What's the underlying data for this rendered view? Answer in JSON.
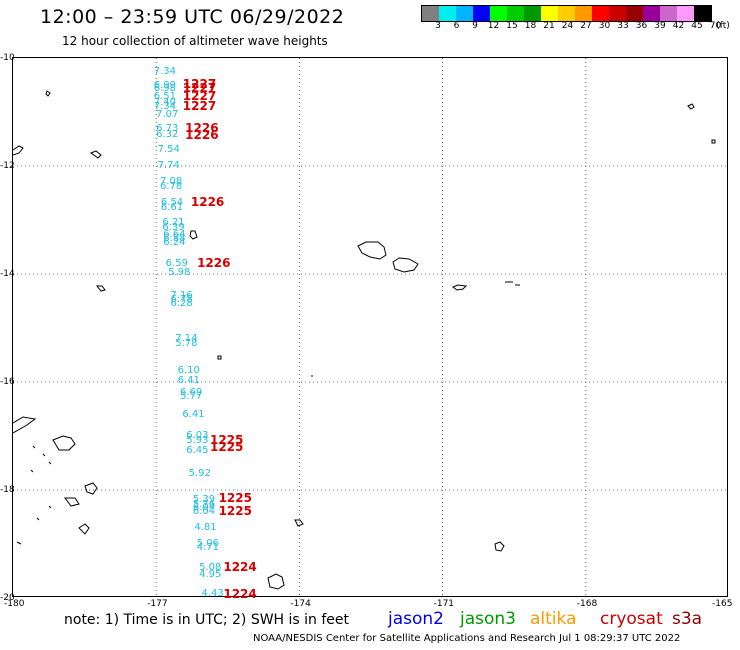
{
  "header": {
    "title": "12:00 – 23:59 UTC 06/29/2022",
    "subtitle": "12 hour collection of altimeter wave heights"
  },
  "colorbar": {
    "colors": [
      "#808080",
      "#00eeee",
      "#00b4ff",
      "#0000ff",
      "#00ff00",
      "#00cc00",
      "#009900",
      "#ffff00",
      "#ffcc00",
      "#ff9900",
      "#ff0000",
      "#cc0000",
      "#990000",
      "#990099",
      "#cc66cc",
      "#ff99ff",
      "#000000"
    ],
    "ticks": [
      "3",
      "6",
      "9",
      "12",
      "15",
      "18",
      "21",
      "24",
      "27",
      "30",
      "33",
      "36",
      "39",
      "42",
      "45",
      "70",
      "(ft)"
    ]
  },
  "axes": {
    "lat_labels": [
      "-10",
      "-12",
      "-14",
      "-16",
      "-18",
      "-20"
    ],
    "lon_labels": [
      "-180",
      "-177",
      "-174",
      "-171",
      "-168",
      "-165"
    ]
  },
  "observations": {
    "wave_heights": [
      {
        "lon": -176.8,
        "lat": -10.25,
        "v": "7.34"
      },
      {
        "lon": -176.8,
        "lat": -10.52,
        "v": "6.99"
      },
      {
        "lon": -176.8,
        "lat": -10.58,
        "v": "6.98"
      },
      {
        "lon": -176.8,
        "lat": -10.72,
        "v": "6.51"
      },
      {
        "lon": -176.8,
        "lat": -10.84,
        "v": "7.40"
      },
      {
        "lon": -176.8,
        "lat": -10.9,
        "v": "7.34"
      },
      {
        "lon": -176.75,
        "lat": -11.05,
        "v": "7.07"
      },
      {
        "lon": -176.75,
        "lat": -11.32,
        "v": "6.73"
      },
      {
        "lon": -176.75,
        "lat": -11.42,
        "v": "6.32"
      },
      {
        "lon": -176.72,
        "lat": -11.7,
        "v": "7.54"
      },
      {
        "lon": -176.72,
        "lat": -12.0,
        "v": "7.74"
      },
      {
        "lon": -176.67,
        "lat": -12.3,
        "v": "7.08"
      },
      {
        "lon": -176.67,
        "lat": -12.38,
        "v": "6.78"
      },
      {
        "lon": -176.65,
        "lat": -12.68,
        "v": "6.54"
      },
      {
        "lon": -176.65,
        "lat": -12.78,
        "v": "6.61"
      },
      {
        "lon": -176.62,
        "lat": -13.05,
        "v": "6.21"
      },
      {
        "lon": -176.62,
        "lat": -13.15,
        "v": "6.39"
      },
      {
        "lon": -176.6,
        "lat": -13.28,
        "v": "6.64"
      },
      {
        "lon": -176.6,
        "lat": -13.35,
        "v": "6.88"
      },
      {
        "lon": -176.6,
        "lat": -13.42,
        "v": "6.24"
      },
      {
        "lon": -176.55,
        "lat": -13.82,
        "v": "6.59"
      },
      {
        "lon": -176.5,
        "lat": -13.98,
        "v": "5.98"
      },
      {
        "lon": -176.45,
        "lat": -14.4,
        "v": "7.16"
      },
      {
        "lon": -176.45,
        "lat": -14.48,
        "v": "6.78"
      },
      {
        "lon": -176.45,
        "lat": -14.55,
        "v": "6.28"
      },
      {
        "lon": -176.35,
        "lat": -15.2,
        "v": "7.14"
      },
      {
        "lon": -176.35,
        "lat": -15.3,
        "v": "5.78"
      },
      {
        "lon": -176.3,
        "lat": -15.8,
        "v": "6.10"
      },
      {
        "lon": -176.3,
        "lat": -15.98,
        "v": "6.41"
      },
      {
        "lon": -176.25,
        "lat": -16.2,
        "v": "6.69"
      },
      {
        "lon": -176.25,
        "lat": -16.28,
        "v": "5.77"
      },
      {
        "lon": -176.2,
        "lat": -16.62,
        "v": "6.41"
      },
      {
        "lon": -176.12,
        "lat": -17.0,
        "v": "6.03"
      },
      {
        "lon": -176.12,
        "lat": -17.1,
        "v": "5.93"
      },
      {
        "lon": -176.12,
        "lat": -17.28,
        "v": "6.45"
      },
      {
        "lon": -176.07,
        "lat": -17.7,
        "v": "5.92"
      },
      {
        "lon": -175.98,
        "lat": -18.18,
        "v": "5.39"
      },
      {
        "lon": -175.98,
        "lat": -18.28,
        "v": "5.76"
      },
      {
        "lon": -175.98,
        "lat": -18.33,
        "v": "6.04"
      },
      {
        "lon": -175.98,
        "lat": -18.4,
        "v": "6.04"
      },
      {
        "lon": -175.95,
        "lat": -18.7,
        "v": "4.81"
      },
      {
        "lon": -175.9,
        "lat": -19.0,
        "v": "5.06"
      },
      {
        "lon": -175.9,
        "lat": -19.08,
        "v": "4.71"
      },
      {
        "lon": -175.85,
        "lat": -19.45,
        "v": "5.08"
      },
      {
        "lon": -175.85,
        "lat": -19.57,
        "v": "4.95"
      },
      {
        "lon": -175.8,
        "lat": -19.92,
        "v": "4.43"
      }
    ],
    "times": [
      {
        "lon": -176.15,
        "lat": -10.48,
        "v": "1227"
      },
      {
        "lon": -176.15,
        "lat": -10.55,
        "v": "1227"
      },
      {
        "lon": -176.15,
        "lat": -10.7,
        "v": "1227"
      },
      {
        "lon": -176.15,
        "lat": -10.88,
        "v": "1227"
      },
      {
        "lon": -176.1,
        "lat": -11.3,
        "v": "1226"
      },
      {
        "lon": -176.1,
        "lat": -11.43,
        "v": "1226"
      },
      {
        "lon": -175.98,
        "lat": -12.67,
        "v": "1226"
      },
      {
        "lon": -175.85,
        "lat": -13.8,
        "v": "1226"
      },
      {
        "lon": -175.58,
        "lat": -17.07,
        "v": "1225"
      },
      {
        "lon": -175.58,
        "lat": -17.2,
        "v": "1225"
      },
      {
        "lon": -175.4,
        "lat": -18.15,
        "v": "1225"
      },
      {
        "lon": -175.4,
        "lat": -18.38,
        "v": "1225"
      },
      {
        "lon": -175.3,
        "lat": -19.42,
        "v": "1224"
      },
      {
        "lon": -175.3,
        "lat": -19.92,
        "v": "1224"
      }
    ]
  },
  "note": "note:  1) Time is in UTC;  2) SWH is in feet",
  "satellites": [
    {
      "name": "jason2",
      "color": "#0000ee"
    },
    {
      "name": "jason3",
      "color": "#009900"
    },
    {
      "name": "altika",
      "color": "#ff9900"
    },
    {
      "name": "cryosat",
      "color": "#cc0000"
    },
    {
      "name": "s3a",
      "color": "#880000"
    }
  ],
  "footer": "NOAA/NESDIS Center for Satellite Applications and Research    Jul  1 08:29:37 UTC 2022"
}
